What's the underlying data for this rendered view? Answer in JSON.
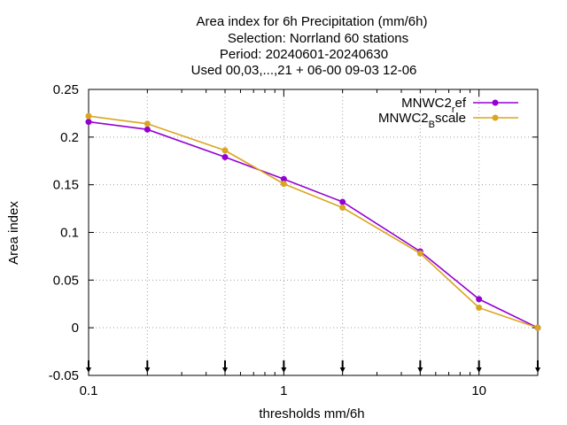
{
  "chart_data": {
    "type": "line",
    "title_lines": [
      "Area index  for 6h Precipitation (mm/6h)",
      "Selection: Norrland     60 stations",
      "Period: 20240601-20240630",
      "Used 00,03,...,21 + 06-00 09-03 12-06"
    ],
    "xlabel": "thresholds mm/6h",
    "ylabel": "Area index",
    "x_scale": "log",
    "xlim": [
      0.1,
      20
    ],
    "ylim": [
      -0.05,
      0.25
    ],
    "x_ticks": [
      {
        "value": 0.1,
        "label": "0.1"
      },
      {
        "value": 1,
        "label": "1"
      },
      {
        "value": 10,
        "label": "10"
      }
    ],
    "y_ticks": [
      {
        "value": 0.25,
        "label": "0.25"
      },
      {
        "value": 0.2,
        "label": "0.2"
      },
      {
        "value": 0.15,
        "label": "0.15"
      },
      {
        "value": 0.1,
        "label": "0.1"
      },
      {
        "value": 0.05,
        "label": "0.05"
      },
      {
        "value": 0,
        "label": "0"
      },
      {
        "value": -0.05,
        "label": "-0.05"
      }
    ],
    "grid": true,
    "legend_position": "top-right",
    "x": [
      0.1,
      0.2,
      0.5,
      1,
      2,
      5,
      10,
      20
    ],
    "series": [
      {
        "name": "MNWC2",
        "name_sub": "r",
        "name_rest": "ef",
        "color": "#9400d3",
        "values": [
          0.216,
          0.208,
          0.179,
          0.156,
          0.132,
          0.08,
          0.03,
          0.0
        ]
      },
      {
        "name": "MNWC2",
        "name_sub": "B",
        "name_rest": "scale",
        "color": "#daa520",
        "values": [
          0.222,
          0.214,
          0.186,
          0.151,
          0.126,
          0.078,
          0.021,
          0.0
        ]
      }
    ]
  }
}
